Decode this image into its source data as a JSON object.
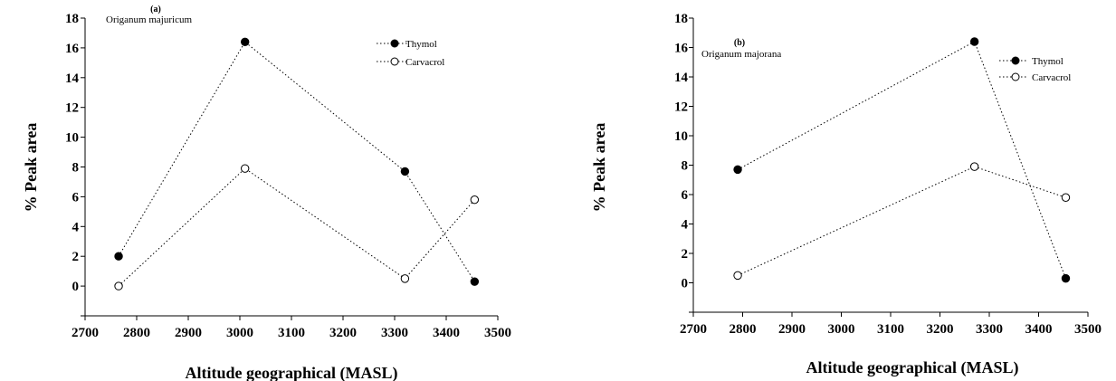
{
  "chart_data": [
    {
      "type": "line",
      "panel_label": "(a)",
      "subtitle": "Origanum majuricum",
      "xlabel": "Altitude geographical (MASL)",
      "ylabel": "% Peak area",
      "xlim": [
        2700,
        3500
      ],
      "ylim": [
        -2,
        18
      ],
      "x_ticks": [
        "2700",
        "2800",
        "2900",
        "3000",
        "3100",
        "3200",
        "3300",
        "3400",
        "3500"
      ],
      "y_ticks": [
        "0",
        "2",
        "4",
        "6",
        "8",
        "10",
        "12",
        "14",
        "16",
        "18"
      ],
      "legend_position": "top-right",
      "series": [
        {
          "name": "Thymol",
          "marker": "filled-circle",
          "line_style": "dotted",
          "x": [
            2765,
            3010,
            3320,
            3455
          ],
          "y": [
            2.0,
            16.4,
            7.7,
            0.3
          ]
        },
        {
          "name": "Carvacrol",
          "marker": "open-circle",
          "line_style": "dotted",
          "x": [
            2765,
            3010,
            3320,
            3455
          ],
          "y": [
            0.0,
            7.9,
            0.5,
            5.8
          ]
        }
      ]
    },
    {
      "type": "line",
      "panel_label": "(b)",
      "subtitle": "Origanum majorana",
      "xlabel": "Altitude geographical (MASL)",
      "ylabel": "% Peak area",
      "xlim": [
        2700,
        3500
      ],
      "ylim": [
        -2,
        18
      ],
      "x_ticks": [
        "2700",
        "2800",
        "2900",
        "3000",
        "3100",
        "3200",
        "3300",
        "3400",
        "3500"
      ],
      "y_ticks": [
        "0",
        "2",
        "4",
        "6",
        "8",
        "10",
        "12",
        "14",
        "16",
        "18"
      ],
      "legend_position": "top-right",
      "series": [
        {
          "name": "Thymol",
          "marker": "filled-circle",
          "line_style": "dotted",
          "x": [
            2790,
            3270,
            3455
          ],
          "y": [
            7.7,
            16.4,
            0.3
          ]
        },
        {
          "name": "Carvacrol",
          "marker": "open-circle",
          "line_style": "dotted",
          "x": [
            2790,
            3270,
            3455
          ],
          "y": [
            0.5,
            7.9,
            5.8
          ]
        }
      ]
    }
  ]
}
